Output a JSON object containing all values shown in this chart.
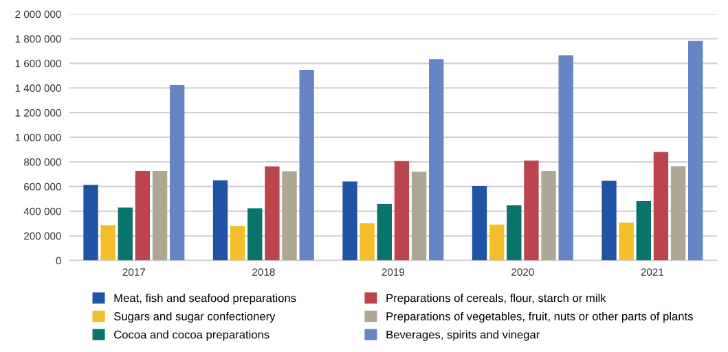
{
  "chart_data": {
    "type": "bar",
    "categories": [
      "2017",
      "2018",
      "2019",
      "2020",
      "2021"
    ],
    "series": [
      {
        "name": "Meat, fish and seafood preparations",
        "color": "#1f54a5",
        "values": [
          613000,
          651000,
          641000,
          605000,
          647000
        ]
      },
      {
        "name": "Sugars and sugar confectionery",
        "color": "#f3be28",
        "values": [
          286000,
          280000,
          303000,
          290000,
          307000
        ]
      },
      {
        "name": "Cocoa and cocoa preparations",
        "color": "#08746c",
        "values": [
          429000,
          424000,
          460000,
          448000,
          483000
        ]
      },
      {
        "name": "Preparations of cereals, flour, starch or milk",
        "color": "#bb444d",
        "values": [
          727000,
          763000,
          807000,
          811000,
          880000
        ]
      },
      {
        "name": "Preparations of vegetables, fruit, nuts or other parts of plants",
        "color": "#aea794",
        "values": [
          727000,
          725000,
          721000,
          727000,
          765000
        ]
      },
      {
        "name": "Beverages, spirits and vinegar",
        "color": "#6685c5",
        "values": [
          1424000,
          1546000,
          1634000,
          1666000,
          1782000
        ]
      }
    ],
    "ylim": [
      0,
      2000000
    ],
    "yticks": [
      0,
      {
        "value": 200000,
        "label": "200 000"
      },
      {
        "value": 400000,
        "label": "400 000"
      },
      {
        "value": 600000,
        "label": "600 000"
      },
      {
        "value": 800000,
        "label": "800 000"
      },
      {
        "value": 1000000,
        "label": "1 000 000"
      },
      {
        "value": 1200000,
        "label": "1 200 000"
      },
      {
        "value": 1400000,
        "label": "1 400 000"
      },
      {
        "value": 1600000,
        "label": "1 600 000"
      },
      {
        "value": 1800000,
        "label": "1 800 000"
      },
      {
        "value": 2000000,
        "label": "2 000 000"
      }
    ],
    "grid": "y",
    "legend": "bottom"
  }
}
